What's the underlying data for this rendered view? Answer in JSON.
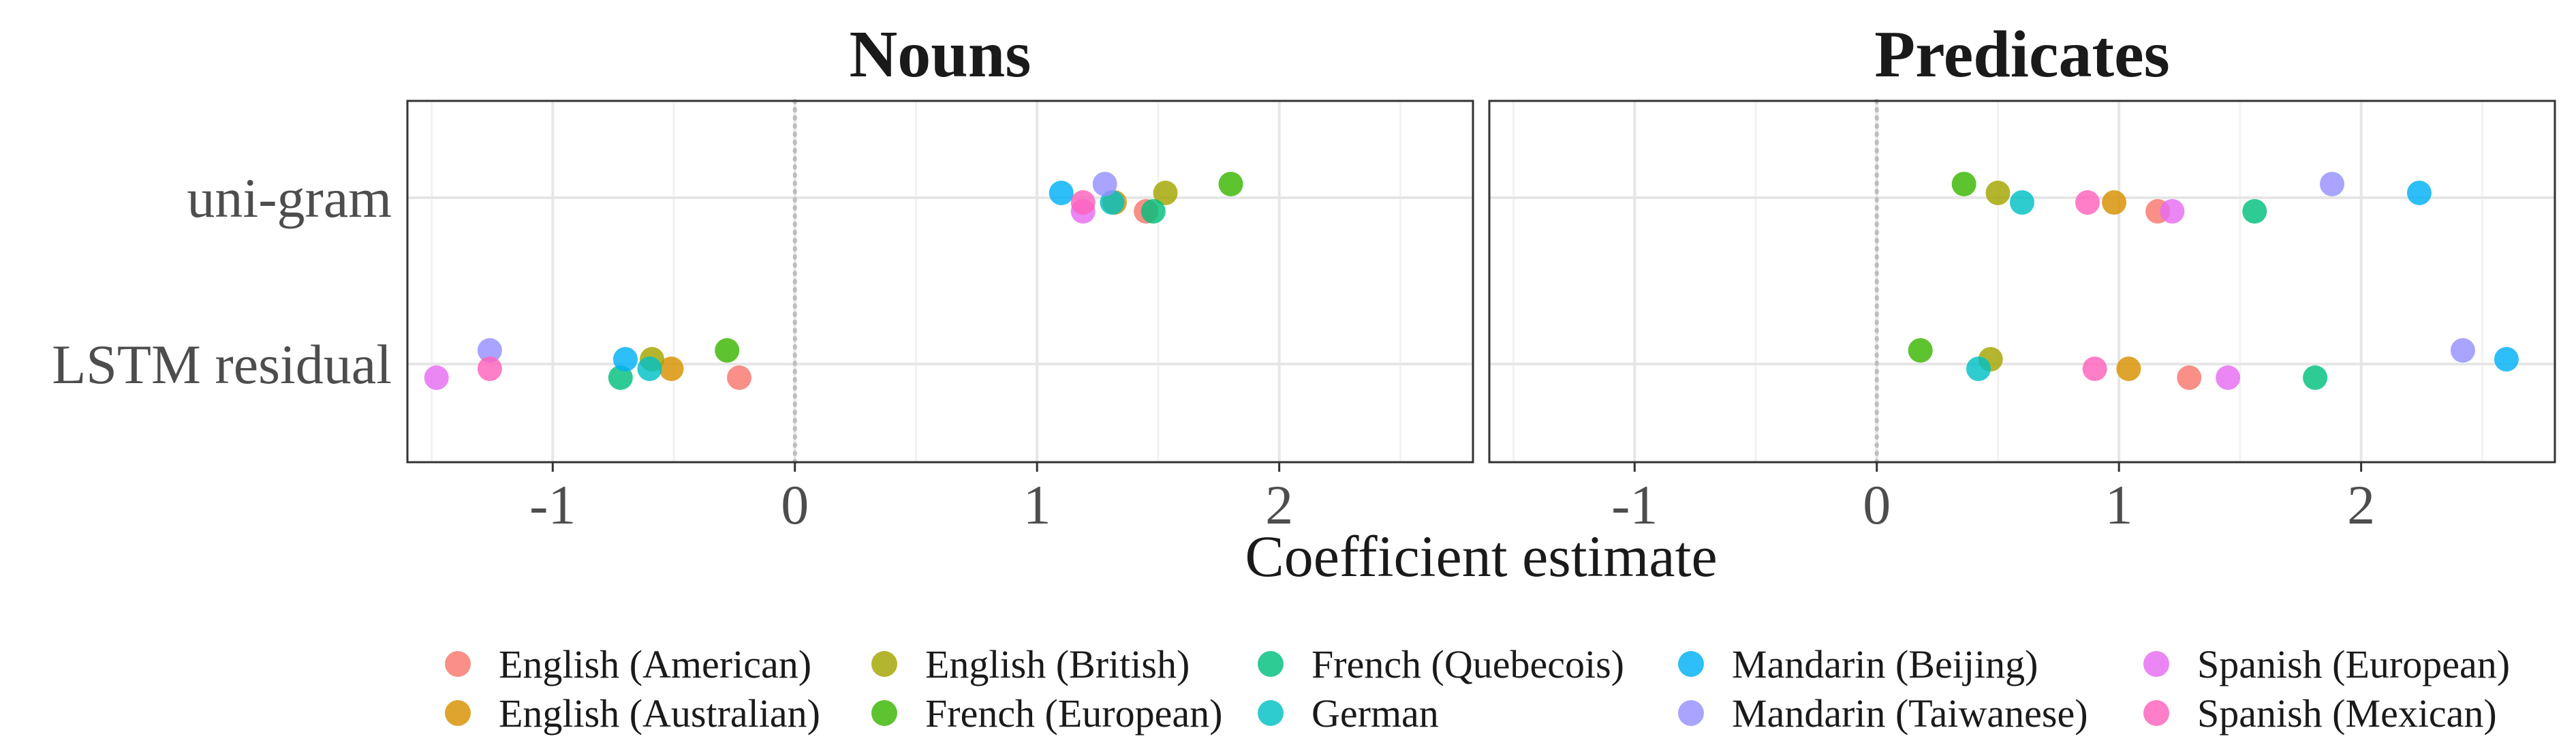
{
  "chart_data": {
    "type": "scatter",
    "xlabel": "Coefficient estimate",
    "xlim": [
      -1.6,
      2.8
    ],
    "xticks": [
      -1,
      0,
      1,
      2
    ],
    "xtick_labels": [
      "-1",
      "0",
      "1",
      "2"
    ],
    "reference_line_x": 0,
    "categories": [
      "uni-gram",
      "LSTM residual"
    ],
    "grid": true,
    "legend_position": "bottom",
    "colors": {
      "English (American)": "#F8766D",
      "English (Australian)": "#D89000",
      "English (British)": "#A3A500",
      "French (European)": "#39B600",
      "French (Quebecois)": "#00BF7D",
      "German": "#00BFC4",
      "Mandarin (Beijing)": "#00B0F6",
      "Mandarin (Taiwanese)": "#9590FF",
      "Spanish (European)": "#E76BF3",
      "Spanish (Mexican)": "#FF62BC"
    },
    "panels": [
      {
        "title": "Nouns",
        "points": [
          {
            "series": "English (American)",
            "category": "uni-gram",
            "x": 1.45
          },
          {
            "series": "English (Australian)",
            "category": "uni-gram",
            "x": 1.32
          },
          {
            "series": "English (British)",
            "category": "uni-gram",
            "x": 1.53
          },
          {
            "series": "French (European)",
            "category": "uni-gram",
            "x": 1.8
          },
          {
            "series": "French (Quebecois)",
            "category": "uni-gram",
            "x": 1.48
          },
          {
            "series": "German",
            "category": "uni-gram",
            "x": 1.31
          },
          {
            "series": "Mandarin (Beijing)",
            "category": "uni-gram",
            "x": 1.1
          },
          {
            "series": "Mandarin (Taiwanese)",
            "category": "uni-gram",
            "x": 1.28
          },
          {
            "series": "Spanish (European)",
            "category": "uni-gram",
            "x": 1.19
          },
          {
            "series": "Spanish (Mexican)",
            "category": "uni-gram",
            "x": 1.19
          },
          {
            "series": "English (American)",
            "category": "LSTM residual",
            "x": -0.23
          },
          {
            "series": "English (Australian)",
            "category": "LSTM residual",
            "x": -0.51
          },
          {
            "series": "English (British)",
            "category": "LSTM residual",
            "x": -0.59
          },
          {
            "series": "French (European)",
            "category": "LSTM residual",
            "x": -0.28
          },
          {
            "series": "French (Quebecois)",
            "category": "LSTM residual",
            "x": -0.72
          },
          {
            "series": "German",
            "category": "LSTM residual",
            "x": -0.6
          },
          {
            "series": "Mandarin (Beijing)",
            "category": "LSTM residual",
            "x": -0.7
          },
          {
            "series": "Mandarin (Taiwanese)",
            "category": "LSTM residual",
            "x": -1.26
          },
          {
            "series": "Spanish (European)",
            "category": "LSTM residual",
            "x": -1.48
          },
          {
            "series": "Spanish (Mexican)",
            "category": "LSTM residual",
            "x": -1.26
          }
        ]
      },
      {
        "title": "Predicates",
        "points": [
          {
            "series": "English (American)",
            "category": "uni-gram",
            "x": 1.16
          },
          {
            "series": "English (Australian)",
            "category": "uni-gram",
            "x": 0.98
          },
          {
            "series": "English (British)",
            "category": "uni-gram",
            "x": 0.5
          },
          {
            "series": "French (European)",
            "category": "uni-gram",
            "x": 0.36
          },
          {
            "series": "French (Quebecois)",
            "category": "uni-gram",
            "x": 1.56
          },
          {
            "series": "German",
            "category": "uni-gram",
            "x": 0.6
          },
          {
            "series": "Mandarin (Beijing)",
            "category": "uni-gram",
            "x": 2.24
          },
          {
            "series": "Mandarin (Taiwanese)",
            "category": "uni-gram",
            "x": 1.88
          },
          {
            "series": "Spanish (European)",
            "category": "uni-gram",
            "x": 1.22
          },
          {
            "series": "Spanish (Mexican)",
            "category": "uni-gram",
            "x": 0.87
          },
          {
            "series": "English (American)",
            "category": "LSTM residual",
            "x": 1.29
          },
          {
            "series": "English (Australian)",
            "category": "LSTM residual",
            "x": 1.04
          },
          {
            "series": "English (British)",
            "category": "LSTM residual",
            "x": 0.47
          },
          {
            "series": "French (European)",
            "category": "LSTM residual",
            "x": 0.18
          },
          {
            "series": "French (Quebecois)",
            "category": "LSTM residual",
            "x": 1.81
          },
          {
            "series": "German",
            "category": "LSTM residual",
            "x": 0.42
          },
          {
            "series": "Mandarin (Beijing)",
            "category": "LSTM residual",
            "x": 2.6
          },
          {
            "series": "Mandarin (Taiwanese)",
            "category": "LSTM residual",
            "x": 2.42
          },
          {
            "series": "Spanish (European)",
            "category": "LSTM residual",
            "x": 1.45
          },
          {
            "series": "Spanish (Mexican)",
            "category": "LSTM residual",
            "x": 0.9
          }
        ]
      }
    ],
    "legend": [
      "English (American)",
      "English (Australian)",
      "English (British)",
      "French (European)",
      "French (Quebecois)",
      "German",
      "Mandarin (Beijing)",
      "Mandarin (Taiwanese)",
      "Spanish (European)",
      "Spanish (Mexican)"
    ]
  }
}
